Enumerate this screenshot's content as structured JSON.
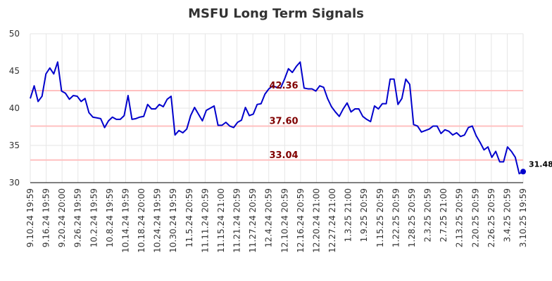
{
  "chart_data": {
    "type": "line",
    "title": "MSFU Long Term Signals",
    "xlabel": "",
    "ylabel": "",
    "ylim": [
      30,
      50
    ],
    "y_ticks": [
      30,
      35,
      40,
      45,
      50
    ],
    "grid": true,
    "x_tick_labels": [
      "9.10.24 19:59",
      "9.16.24 19:59",
      "9.20.24 20:00",
      "9.26.24 19:59",
      "10.2.24 19:59",
      "10.8.24 19:59",
      "10.14.24 19:59",
      "10.18.24 20:00",
      "10.24.24 19:59",
      "10.30.24 19:59",
      "11.5.24 20:59",
      "11.11.24 20:59",
      "11.15.24 21:00",
      "11.21.24 20:59",
      "11.27.24 20:59",
      "12.4.24 20:59",
      "12.10.24 20:59",
      "12.16.24 20:59",
      "12.20.24 21:00",
      "12.27.24 21:00",
      "1.3.25 21:00",
      "1.9.25 20:59",
      "1.15.25 20:59",
      "1.22.25 20:59",
      "1.28.25 20:59",
      "2.3.25 20:59",
      "2.7.25 21:00",
      "2.13.25 20:59",
      "2.20.25 20:59",
      "2.26.25 20:59",
      "3.4.25 20:59",
      "3.10.25 19:59"
    ],
    "series": [
      {
        "color": "#0000cc",
        "values": [
          41.3,
          43.0,
          40.9,
          41.6,
          44.6,
          45.4,
          44.6,
          46.2,
          42.3,
          42.0,
          41.2,
          41.7,
          41.6,
          40.9,
          41.3,
          39.4,
          38.8,
          38.7,
          38.6,
          37.4,
          38.3,
          38.8,
          38.5,
          38.5,
          39.0,
          41.7,
          38.5,
          38.6,
          38.8,
          38.9,
          40.5,
          39.9,
          39.9,
          40.5,
          40.2,
          41.2,
          41.6,
          36.4,
          37.0,
          36.7,
          37.2,
          39.0,
          40.1,
          39.2,
          38.3,
          39.7,
          40.0,
          40.3,
          37.7,
          37.7,
          38.1,
          37.6,
          37.4,
          38.1,
          38.4,
          40.1,
          39.0,
          39.2,
          40.5,
          40.6,
          41.9,
          42.6,
          43.0,
          42.8,
          42.7,
          43.9,
          45.3,
          44.8,
          45.6,
          46.2,
          42.7,
          42.6,
          42.6,
          42.3,
          43.0,
          42.8,
          41.3,
          40.2,
          39.5,
          38.9,
          39.9,
          40.7,
          39.5,
          39.9,
          39.9,
          38.9,
          38.5,
          38.2,
          40.3,
          39.9,
          40.6,
          40.6,
          43.9,
          43.9,
          40.5,
          41.3,
          43.9,
          43.2,
          37.8,
          37.6,
          36.8,
          37.0,
          37.2,
          37.6,
          37.6,
          36.6,
          37.1,
          36.9,
          36.4,
          36.7,
          36.2,
          36.4,
          37.4,
          37.6,
          36.3,
          35.4,
          34.4,
          34.8,
          33.4,
          34.2,
          32.8,
          32.8,
          34.8,
          34.2,
          33.4,
          31.2,
          31.48
        ]
      }
    ],
    "levels": [
      {
        "value": 42.36,
        "label": "42.36",
        "color": "#ffc0c0"
      },
      {
        "value": 37.6,
        "label": "37.60",
        "color": "#ffc0c0"
      },
      {
        "value": 33.04,
        "label": "33.04",
        "color": "#ffc0c0"
      }
    ],
    "last_point": {
      "value": 31.48,
      "label": "31.48",
      "color": "#0000cc"
    }
  }
}
